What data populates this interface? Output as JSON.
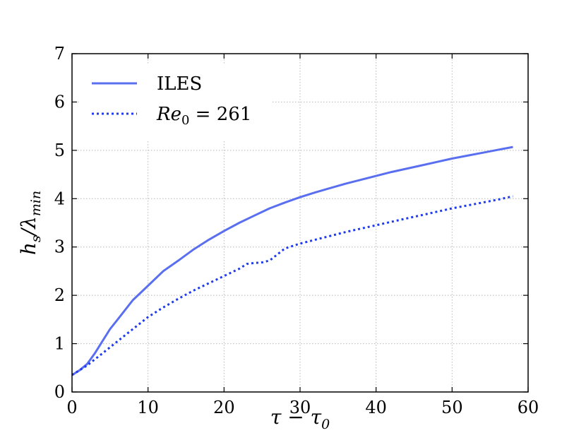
{
  "chart_data": {
    "type": "line",
    "xlabel": "τ − τ",
    "xlabel_sub": "0",
    "ylabel": "h",
    "ylabel_sub_1": "s",
    "ylabel_mid": "/λ",
    "ylabel_sub_2": "min",
    "xlim": [
      0,
      60
    ],
    "ylim": [
      0,
      7
    ],
    "xticks": [
      0,
      10,
      20,
      30,
      40,
      50,
      60
    ],
    "yticks": [
      0,
      1,
      2,
      3,
      4,
      5,
      6,
      7
    ],
    "grid": true,
    "legend_position": "top-left",
    "series": [
      {
        "name": "ILES",
        "style": "solid",
        "color": "#5a6ff0",
        "x": [
          0,
          1,
          2,
          3,
          4,
          5,
          6,
          8,
          10,
          12,
          14,
          16,
          18,
          20,
          22,
          24,
          26,
          28,
          30,
          32,
          34,
          36,
          38,
          40,
          42,
          44,
          46,
          48,
          50,
          52,
          54,
          56,
          58
        ],
        "y": [
          0.35,
          0.45,
          0.58,
          0.8,
          1.05,
          1.3,
          1.5,
          1.9,
          2.2,
          2.5,
          2.72,
          2.95,
          3.15,
          3.33,
          3.5,
          3.65,
          3.8,
          3.92,
          4.03,
          4.13,
          4.22,
          4.31,
          4.39,
          4.47,
          4.55,
          4.62,
          4.69,
          4.76,
          4.83,
          4.89,
          4.95,
          5.01,
          5.07
        ]
      },
      {
        "name": "Re",
        "name_sub": "0",
        "name_suffix": " = 261",
        "style": "dotted",
        "color": "#1f3bf0",
        "x": [
          0,
          2,
          4,
          6,
          8,
          10,
          12,
          14,
          16,
          18,
          20,
          22,
          23,
          24,
          25,
          26,
          28,
          30,
          32,
          34,
          36,
          38,
          40,
          42,
          44,
          46,
          48,
          50,
          52,
          54,
          56,
          58
        ],
        "y": [
          0.35,
          0.55,
          0.8,
          1.05,
          1.3,
          1.55,
          1.75,
          1.93,
          2.1,
          2.25,
          2.4,
          2.55,
          2.65,
          2.67,
          2.68,
          2.72,
          2.97,
          3.07,
          3.15,
          3.23,
          3.31,
          3.38,
          3.45,
          3.52,
          3.59,
          3.66,
          3.73,
          3.8,
          3.86,
          3.92,
          3.98,
          4.05
        ]
      }
    ]
  }
}
